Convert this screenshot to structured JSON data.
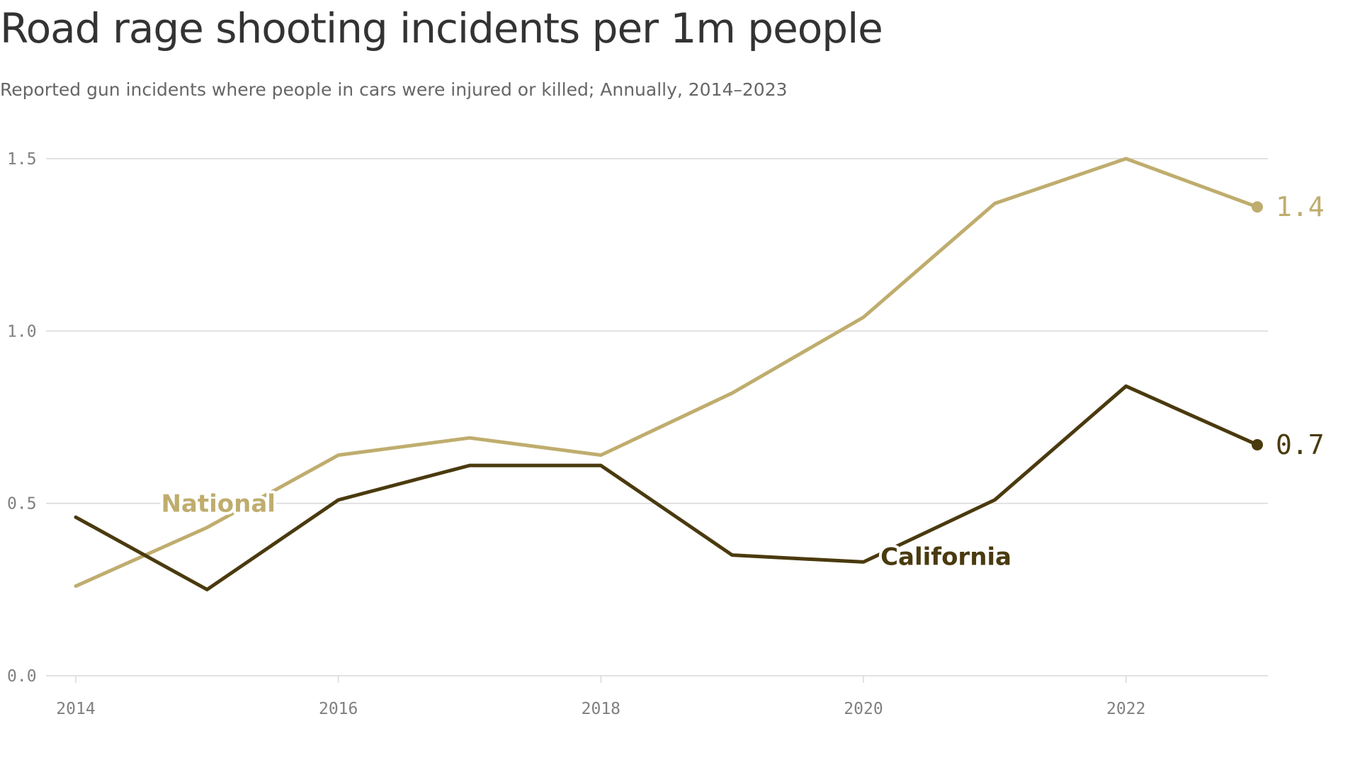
{
  "chart_data": {
    "type": "line",
    "title": "Road rage shooting incidents per 1m people",
    "subtitle": "Reported gun incidents where people in cars were injured or killed; Annually, 2014–2023",
    "x": [
      2014,
      2015,
      2016,
      2017,
      2018,
      2019,
      2020,
      2021,
      2022,
      2023
    ],
    "x_ticks": [
      2014,
      2016,
      2018,
      2020,
      2022
    ],
    "x_tick_labels": [
      "2014",
      "2016",
      "2018",
      "2020",
      "2022"
    ],
    "y_ticks": [
      0,
      0.5,
      1.0,
      1.5
    ],
    "y_tick_labels": [
      "0.0",
      "0.5",
      "1.0",
      "1.5"
    ],
    "ylim": [
      0,
      1.5
    ],
    "xlim": [
      2014,
      2023
    ],
    "grid": true,
    "series": [
      {
        "name": "National",
        "color": "#bfad6e",
        "values": [
          0.26,
          0.43,
          0.64,
          0.69,
          0.64,
          0.82,
          1.04,
          1.37,
          1.5,
          1.36
        ],
        "end_label": "1.4"
      },
      {
        "name": "California",
        "color": "#4a3a0e",
        "values": [
          0.46,
          0.25,
          0.51,
          0.61,
          0.61,
          0.35,
          0.33,
          0.51,
          0.84,
          0.67
        ],
        "end_label": "0.7"
      }
    ]
  }
}
